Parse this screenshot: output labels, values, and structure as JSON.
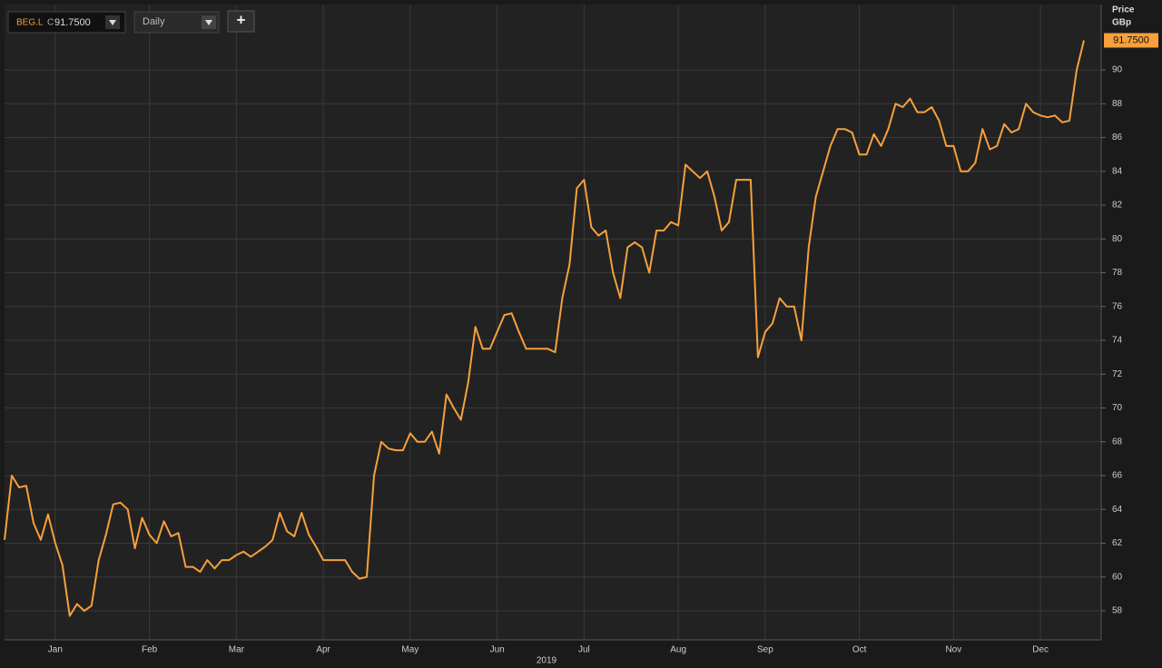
{
  "toolbar": {
    "symbol": "BEG.L",
    "close_prefix": "C",
    "close": "91.7500",
    "interval": "Daily",
    "add": "+"
  },
  "chart_data": {
    "type": "line",
    "color": "#f7a03c",
    "y_axis_title": "Price",
    "y_axis_unit": "GBp",
    "x_axis_year": "2019",
    "last_value_label": "91.7500",
    "values": [
      62.2,
      66.0,
      65.3,
      65.4,
      63.2,
      62.2,
      63.7,
      62.0,
      60.7,
      57.7,
      58.4,
      58.0,
      58.3,
      61.0,
      62.5,
      64.3,
      64.4,
      64.0,
      61.7,
      63.5,
      62.5,
      62.0,
      63.3,
      62.4,
      62.6,
      60.6,
      60.6,
      60.3,
      61.0,
      60.5,
      61.0,
      61.0,
      61.3,
      61.5,
      61.2,
      61.5,
      61.8,
      62.2,
      63.8,
      62.7,
      62.4,
      63.8,
      62.5,
      61.8,
      61.0,
      61.0,
      61.0,
      61.0,
      60.3,
      59.9,
      60.0,
      66.0,
      68.0,
      67.6,
      67.5,
      67.5,
      68.5,
      68.0,
      68.0,
      68.6,
      67.3,
      70.8,
      70.0,
      69.3,
      71.5,
      74.8,
      73.5,
      73.5,
      74.5,
      75.5,
      75.6,
      74.5,
      73.5,
      73.5,
      73.5,
      73.5,
      73.3,
      76.5,
      78.5,
      83.0,
      83.5,
      80.7,
      80.2,
      80.5,
      78.0,
      76.5,
      79.5,
      79.8,
      79.5,
      78.0,
      80.5,
      80.5,
      81.0,
      80.8,
      84.4,
      84.0,
      83.6,
      84.0,
      82.5,
      80.5,
      81.0,
      83.5,
      83.5,
      83.5,
      73.0,
      74.5,
      75.0,
      76.5,
      76.0,
      76.0,
      74.0,
      79.5,
      82.5,
      84.0,
      85.5,
      86.5,
      86.5,
      86.3,
      85.0,
      85.0,
      86.2,
      85.5,
      86.5,
      88.0,
      87.8,
      88.3,
      87.5,
      87.5,
      87.8,
      87.0,
      85.5,
      85.5,
      84.0,
      84.0,
      84.5,
      86.5,
      85.3,
      85.5,
      86.8,
      86.3,
      86.5,
      88.0,
      87.5,
      87.3,
      87.2,
      87.3,
      86.9,
      87.0,
      90.0,
      91.75
    ],
    "xticks": [
      {
        "value": 7,
        "label": "Jan"
      },
      {
        "value": 20,
        "label": "Feb"
      },
      {
        "value": 32,
        "label": "Mar"
      },
      {
        "value": 44,
        "label": "Apr"
      },
      {
        "value": 56,
        "label": "May"
      },
      {
        "value": 68,
        "label": "Jun"
      },
      {
        "value": 80,
        "label": "Jul"
      },
      {
        "value": 93,
        "label": "Aug"
      },
      {
        "value": 105,
        "label": "Sep"
      },
      {
        "value": 118,
        "label": "Oct"
      },
      {
        "value": 131,
        "label": "Nov"
      },
      {
        "value": 143,
        "label": "Dec"
      }
    ],
    "ylim": [
      56.28,
      93.87
    ],
    "yticks": [
      58,
      60,
      62,
      64,
      66,
      68,
      70,
      72,
      74,
      76,
      78,
      80,
      82,
      84,
      86,
      88,
      90
    ],
    "grid": true
  }
}
